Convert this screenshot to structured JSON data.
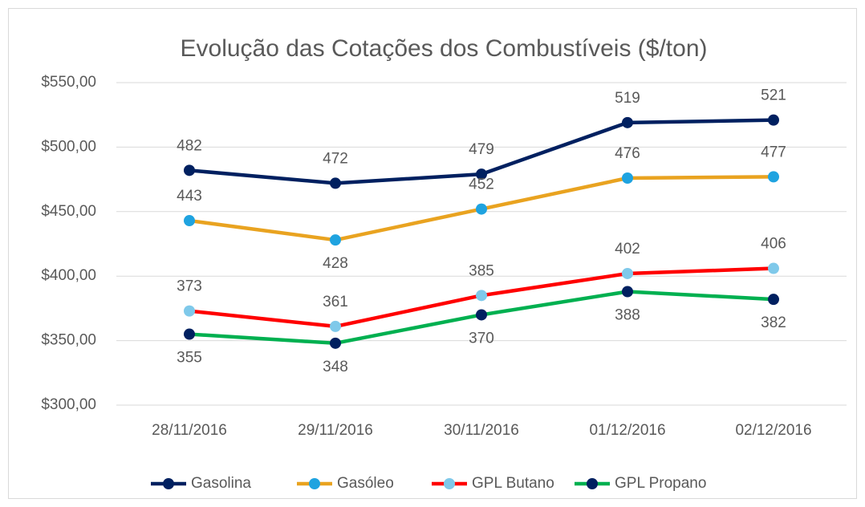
{
  "chart_data": {
    "type": "line",
    "title": "Evolução das Cotações dos Combustíveis ($/ton)",
    "categories": [
      "28/11/2016",
      "29/11/2016",
      "30/11/2016",
      "01/12/2016",
      "02/12/2016"
    ],
    "series": [
      {
        "name": "Gasolina",
        "color": "#002060",
        "marker_color": "#002060",
        "values": [
          482,
          472,
          479,
          519,
          521
        ]
      },
      {
        "name": "Gasóleo",
        "color": "#E9A320",
        "marker_color": "#1FA3E0",
        "values": [
          443,
          428,
          452,
          476,
          477
        ]
      },
      {
        "name": "GPL Butano",
        "color": "#FF0000",
        "marker_color": "#7FC9EA",
        "values": [
          373,
          361,
          385,
          402,
          406
        ]
      },
      {
        "name": "GPL Propano",
        "color": "#00B050",
        "marker_color": "#002060",
        "values": [
          355,
          348,
          370,
          388,
          382
        ]
      }
    ],
    "ylim": [
      300,
      550
    ],
    "yticks": [
      {
        "value": 300,
        "label": "$300,00"
      },
      {
        "value": 350,
        "label": "$350,00"
      },
      {
        "value": 400,
        "label": "$400,00"
      },
      {
        "value": 450,
        "label": "$450,00"
      },
      {
        "value": 500,
        "label": "$500,00"
      },
      {
        "value": 550,
        "label": "$550,00"
      }
    ],
    "grid": true,
    "legend": "bottom"
  }
}
